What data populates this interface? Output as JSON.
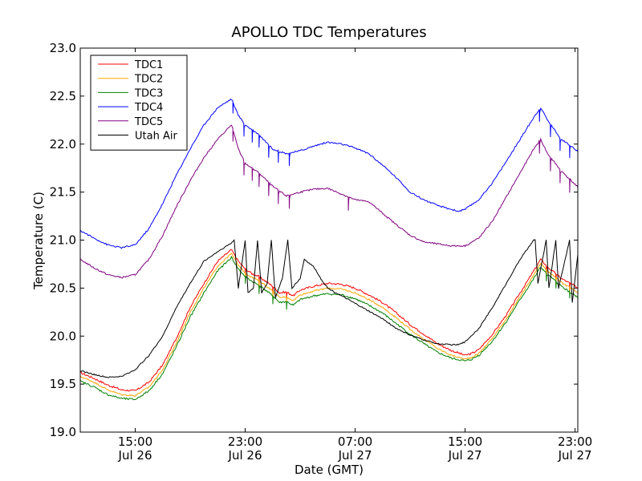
{
  "chart_data": {
    "type": "line",
    "title": "APOLLO TDC Temperatures",
    "xlabel": "Date (GMT)",
    "ylabel": "Temperature (C)",
    "x_unit": "hours since Jul 26 11:00 GMT",
    "xlim": [
      0,
      36.2
    ],
    "ylim": [
      19.0,
      23.0
    ],
    "y_ticks": [
      19.0,
      19.5,
      20.0,
      20.5,
      21.0,
      21.5,
      22.0,
      22.5,
      23.0
    ],
    "y_tick_labels": [
      "19.0",
      "19.5",
      "20.0",
      "20.5",
      "21.0",
      "21.5",
      "22.0",
      "22.5",
      "23.0"
    ],
    "x_ticks": [
      {
        "x": 4,
        "time": "15:00",
        "date": "Jul 26"
      },
      {
        "x": 12,
        "time": "23:00",
        "date": "Jul 26"
      },
      {
        "x": 20,
        "time": "07:00",
        "date": "Jul 27"
      },
      {
        "x": 28,
        "time": "15:00",
        "date": "Jul 27"
      },
      {
        "x": 36,
        "time": "23:00",
        "date": "Jul 27"
      }
    ],
    "grid": false,
    "legend_position": "top-left",
    "series": [
      {
        "name": "TDC1",
        "color": "#ff0000",
        "noise": 0.01,
        "points": [
          [
            0,
            19.62
          ],
          [
            1,
            19.56
          ],
          [
            2,
            19.49
          ],
          [
            3,
            19.44
          ],
          [
            4,
            19.43
          ],
          [
            5,
            19.52
          ],
          [
            6,
            19.7
          ],
          [
            7,
            19.98
          ],
          [
            8,
            20.3
          ],
          [
            9,
            20.55
          ],
          [
            10,
            20.78
          ],
          [
            11,
            20.9
          ],
          [
            11.5,
            20.78
          ],
          [
            12,
            20.7
          ],
          [
            12.5,
            20.65
          ],
          [
            13,
            20.62
          ],
          [
            14,
            20.52
          ],
          [
            14.5,
            20.45
          ],
          [
            15,
            20.46
          ],
          [
            15.5,
            20.42
          ],
          [
            16,
            20.48
          ],
          [
            17,
            20.52
          ],
          [
            18,
            20.55
          ],
          [
            19,
            20.54
          ],
          [
            20,
            20.5
          ],
          [
            21,
            20.43
          ],
          [
            22,
            20.35
          ],
          [
            23,
            20.24
          ],
          [
            24,
            20.12
          ],
          [
            25,
            20.02
          ],
          [
            26,
            19.92
          ],
          [
            27,
            19.85
          ],
          [
            28,
            19.8
          ],
          [
            28.5,
            19.82
          ],
          [
            29,
            19.86
          ],
          [
            30,
            20.02
          ],
          [
            31,
            20.22
          ],
          [
            32,
            20.45
          ],
          [
            33,
            20.68
          ],
          [
            33.5,
            20.8
          ],
          [
            34,
            20.72
          ],
          [
            35,
            20.6
          ],
          [
            36,
            20.52
          ],
          [
            36.2,
            20.5
          ]
        ]
      },
      {
        "name": "TDC2",
        "color": "#ffa500",
        "noise": 0.008,
        "points": [
          [
            0,
            19.58
          ],
          [
            1,
            19.52
          ],
          [
            2,
            19.44
          ],
          [
            3,
            19.39
          ],
          [
            4,
            19.38
          ],
          [
            5,
            19.47
          ],
          [
            6,
            19.65
          ],
          [
            7,
            19.93
          ],
          [
            8,
            20.25
          ],
          [
            9,
            20.5
          ],
          [
            10,
            20.73
          ],
          [
            11,
            20.86
          ],
          [
            11.5,
            20.74
          ],
          [
            12,
            20.66
          ],
          [
            12.5,
            20.61
          ],
          [
            13,
            20.58
          ],
          [
            14,
            20.47
          ],
          [
            14.5,
            20.4
          ],
          [
            15,
            20.41
          ],
          [
            15.5,
            20.37
          ],
          [
            16,
            20.43
          ],
          [
            17,
            20.47
          ],
          [
            18,
            20.5
          ],
          [
            19,
            20.49
          ],
          [
            20,
            20.45
          ],
          [
            21,
            20.38
          ],
          [
            22,
            20.3
          ],
          [
            23,
            20.19
          ],
          [
            24,
            20.07
          ],
          [
            25,
            19.97
          ],
          [
            26,
            19.87
          ],
          [
            27,
            19.8
          ],
          [
            28,
            19.76
          ],
          [
            28.5,
            19.78
          ],
          [
            29,
            19.82
          ],
          [
            30,
            19.98
          ],
          [
            31,
            20.18
          ],
          [
            32,
            20.41
          ],
          [
            33,
            20.64
          ],
          [
            33.5,
            20.76
          ],
          [
            34,
            20.68
          ],
          [
            35,
            20.56
          ],
          [
            36,
            20.47
          ],
          [
            36.2,
            20.45
          ]
        ]
      },
      {
        "name": "TDC3",
        "color": "#008000",
        "noise": 0.01,
        "points": [
          [
            0,
            19.53
          ],
          [
            1,
            19.47
          ],
          [
            2,
            19.39
          ],
          [
            3,
            19.35
          ],
          [
            4,
            19.34
          ],
          [
            5,
            19.43
          ],
          [
            6,
            19.61
          ],
          [
            7,
            19.89
          ],
          [
            8,
            20.2
          ],
          [
            9,
            20.45
          ],
          [
            10,
            20.68
          ],
          [
            11,
            20.82
          ],
          [
            11.5,
            20.7
          ],
          [
            12,
            20.62
          ],
          [
            12.5,
            20.57
          ],
          [
            13,
            20.53
          ],
          [
            14,
            20.42
          ],
          [
            14.5,
            20.35
          ],
          [
            15,
            20.36
          ],
          [
            15.5,
            20.32
          ],
          [
            16,
            20.38
          ],
          [
            17,
            20.42
          ],
          [
            18,
            20.44
          ],
          [
            19,
            20.43
          ],
          [
            20,
            20.39
          ],
          [
            21,
            20.32
          ],
          [
            22,
            20.24
          ],
          [
            23,
            20.13
          ],
          [
            24,
            20.02
          ],
          [
            25,
            19.92
          ],
          [
            26,
            19.83
          ],
          [
            27,
            19.77
          ],
          [
            28,
            19.74
          ],
          [
            28.5,
            19.76
          ],
          [
            29,
            19.8
          ],
          [
            30,
            19.95
          ],
          [
            31,
            20.15
          ],
          [
            32,
            20.38
          ],
          [
            33,
            20.6
          ],
          [
            33.5,
            20.72
          ],
          [
            34,
            20.64
          ],
          [
            35,
            20.52
          ],
          [
            36,
            20.42
          ],
          [
            36.2,
            20.4
          ]
        ]
      },
      {
        "name": "TDC4",
        "color": "#0000ff",
        "noise": 0.008,
        "points": [
          [
            0,
            21.1
          ],
          [
            1,
            21.02
          ],
          [
            2,
            20.95
          ],
          [
            3,
            20.92
          ],
          [
            4,
            20.95
          ],
          [
            5,
            21.12
          ],
          [
            6,
            21.38
          ],
          [
            7,
            21.68
          ],
          [
            8,
            21.95
          ],
          [
            9,
            22.2
          ],
          [
            10,
            22.38
          ],
          [
            11,
            22.47
          ],
          [
            11.5,
            22.3
          ],
          [
            12,
            22.2
          ],
          [
            13,
            22.1
          ],
          [
            14,
            21.95
          ],
          [
            15,
            21.9
          ],
          [
            16,
            21.93
          ],
          [
            17,
            21.98
          ],
          [
            18,
            22.02
          ],
          [
            19,
            22.0
          ],
          [
            20,
            21.96
          ],
          [
            21,
            21.9
          ],
          [
            22,
            21.78
          ],
          [
            23,
            21.65
          ],
          [
            24,
            21.5
          ],
          [
            25,
            21.42
          ],
          [
            26,
            21.36
          ],
          [
            27,
            21.32
          ],
          [
            27.5,
            21.3
          ],
          [
            28,
            21.32
          ],
          [
            29,
            21.42
          ],
          [
            30,
            21.6
          ],
          [
            31,
            21.82
          ],
          [
            32,
            22.05
          ],
          [
            33,
            22.28
          ],
          [
            33.5,
            22.38
          ],
          [
            34,
            22.25
          ],
          [
            35,
            22.05
          ],
          [
            36,
            21.95
          ],
          [
            36.2,
            21.92
          ]
        ]
      },
      {
        "name": "TDC5",
        "color": "#800080",
        "noise": 0.008,
        "points": [
          [
            0,
            20.8
          ],
          [
            1,
            20.71
          ],
          [
            2,
            20.64
          ],
          [
            3,
            20.61
          ],
          [
            4,
            20.64
          ],
          [
            5,
            20.8
          ],
          [
            6,
            21.05
          ],
          [
            7,
            21.35
          ],
          [
            8,
            21.62
          ],
          [
            9,
            21.86
          ],
          [
            10,
            22.05
          ],
          [
            11,
            22.2
          ],
          [
            11.5,
            21.95
          ],
          [
            12,
            21.8
          ],
          [
            13,
            21.7
          ],
          [
            14,
            21.56
          ],
          [
            15,
            21.46
          ],
          [
            16,
            21.5
          ],
          [
            17,
            21.53
          ],
          [
            18,
            21.54
          ],
          [
            19,
            21.48
          ],
          [
            20,
            21.42
          ],
          [
            21,
            21.4
          ],
          [
            22,
            21.28
          ],
          [
            23,
            21.16
          ],
          [
            24,
            21.05
          ],
          [
            25,
            20.98
          ],
          [
            26,
            20.96
          ],
          [
            27,
            20.94
          ],
          [
            28,
            20.94
          ],
          [
            29,
            21.02
          ],
          [
            30,
            21.2
          ],
          [
            31,
            21.45
          ],
          [
            32,
            21.7
          ],
          [
            33,
            21.95
          ],
          [
            33.5,
            22.05
          ],
          [
            34,
            21.9
          ],
          [
            35,
            21.72
          ],
          [
            36,
            21.58
          ],
          [
            36.2,
            21.55
          ]
        ]
      },
      {
        "name": "Utah Air",
        "color": "#000000",
        "noise": 0.006,
        "points": [
          [
            0,
            19.64
          ],
          [
            1,
            19.6
          ],
          [
            2,
            19.57
          ],
          [
            3,
            19.58
          ],
          [
            4,
            19.65
          ],
          [
            5,
            19.8
          ],
          [
            6,
            20.0
          ],
          [
            7,
            20.3
          ],
          [
            8,
            20.55
          ],
          [
            9,
            20.78
          ],
          [
            10,
            20.88
          ],
          [
            11,
            20.97
          ],
          [
            11.2,
            21.0
          ],
          [
            11.5,
            20.5
          ],
          [
            12,
            21.0
          ],
          [
            12.2,
            20.45
          ],
          [
            12.6,
            20.5
          ],
          [
            12.9,
            21.0
          ],
          [
            13.2,
            20.45
          ],
          [
            13.6,
            20.55
          ],
          [
            13.9,
            21.0
          ],
          [
            14.2,
            20.4
          ],
          [
            14.7,
            20.6
          ],
          [
            15.1,
            21.0
          ],
          [
            15.4,
            20.5
          ],
          [
            16,
            20.6
          ],
          [
            16.3,
            20.8
          ],
          [
            17,
            20.72
          ],
          [
            17.5,
            20.6
          ],
          [
            18,
            20.5
          ],
          [
            19,
            20.42
          ],
          [
            20,
            20.34
          ],
          [
            21,
            20.26
          ],
          [
            22,
            20.18
          ],
          [
            23,
            20.08
          ],
          [
            24,
            20.01
          ],
          [
            25,
            19.96
          ],
          [
            26,
            19.92
          ],
          [
            27,
            19.91
          ],
          [
            27.5,
            19.91
          ],
          [
            28,
            19.94
          ],
          [
            29,
            20.08
          ],
          [
            30,
            20.3
          ],
          [
            31,
            20.55
          ],
          [
            32,
            20.8
          ],
          [
            33,
            21.0
          ],
          [
            33.1,
            21.0
          ],
          [
            33.3,
            20.55
          ],
          [
            33.9,
            21.0
          ],
          [
            34.1,
            20.5
          ],
          [
            34.6,
            21.0
          ],
          [
            34.8,
            20.5
          ],
          [
            35.6,
            21.0
          ],
          [
            35.8,
            20.35
          ],
          [
            36.2,
            20.85
          ]
        ]
      }
    ],
    "spikes": [
      {
        "series": "TDC1",
        "x": [
          12.0,
          13.0,
          14.0,
          15.0,
          33.9,
          34.6,
          35.6
        ],
        "drop": 0.09
      },
      {
        "series": "TDC2",
        "x": [
          12.0,
          13.0,
          14.0,
          15.0,
          33.9,
          34.6,
          35.6
        ],
        "drop": 0.08
      },
      {
        "series": "TDC3",
        "x": [
          12.0,
          13.0,
          14.0,
          15.0,
          33.9,
          34.6,
          35.6
        ],
        "drop": 0.08
      },
      {
        "series": "TDC4",
        "x": [
          11.1,
          11.9,
          12.5,
          13.0,
          13.7,
          14.4,
          15.2,
          33.4,
          34.2,
          34.9,
          35.6
        ],
        "drop": 0.13
      },
      {
        "series": "TDC5",
        "x": [
          11.1,
          11.9,
          12.5,
          13.0,
          13.7,
          14.4,
          15.2,
          19.5,
          33.4,
          34.2,
          34.9,
          35.6
        ],
        "drop": 0.14
      }
    ]
  }
}
